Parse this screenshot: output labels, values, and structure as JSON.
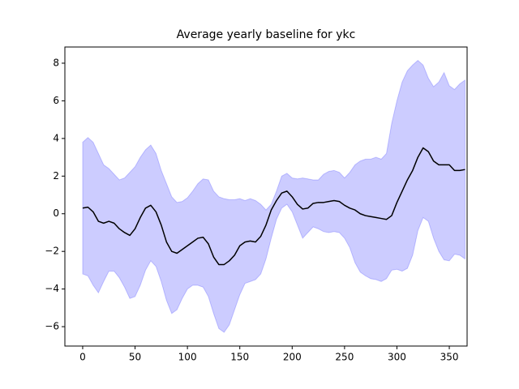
{
  "chart_data": {
    "type": "line",
    "title": "Average yearly baseline for ykc",
    "x": [
      0,
      5,
      10,
      15,
      20,
      25,
      30,
      35,
      40,
      45,
      50,
      55,
      60,
      65,
      70,
      75,
      80,
      85,
      90,
      95,
      100,
      105,
      110,
      115,
      120,
      125,
      130,
      135,
      140,
      145,
      150,
      155,
      160,
      165,
      170,
      175,
      180,
      185,
      190,
      195,
      200,
      205,
      210,
      215,
      220,
      225,
      230,
      235,
      240,
      245,
      250,
      255,
      260,
      265,
      270,
      275,
      280,
      285,
      290,
      295,
      300,
      305,
      310,
      315,
      320,
      325,
      330,
      335,
      340,
      345,
      350,
      355,
      360,
      365
    ],
    "series": [
      {
        "color": "#000000",
        "values": [
          0.3,
          0.35,
          0.1,
          -0.4,
          -0.5,
          -0.4,
          -0.5,
          -0.8,
          -1.0,
          -1.15,
          -0.8,
          -0.2,
          0.3,
          0.45,
          0.1,
          -0.6,
          -1.5,
          -2.0,
          -2.1,
          -1.9,
          -1.7,
          -1.5,
          -1.3,
          -1.25,
          -1.6,
          -2.3,
          -2.7,
          -2.7,
          -2.5,
          -2.2,
          -1.7,
          -1.5,
          -1.45,
          -1.5,
          -1.2,
          -0.6,
          0.2,
          0.7,
          1.1,
          1.2,
          0.9,
          0.5,
          0.25,
          0.3,
          0.55,
          0.6,
          0.6,
          0.65,
          0.7,
          0.65,
          0.45,
          0.3,
          0.2,
          0.0,
          -0.1,
          -0.15,
          -0.2,
          -0.25,
          -0.3,
          -0.1,
          0.6,
          1.2,
          1.8,
          2.3,
          3.0,
          3.5,
          3.3,
          2.8,
          2.6,
          2.6,
          2.6,
          2.3,
          2.3,
          2.35
        ]
      }
    ],
    "band": {
      "color": "#0000ff",
      "opacity": 0.2,
      "upper": [
        3.8,
        4.05,
        3.8,
        3.2,
        2.6,
        2.4,
        2.1,
        1.8,
        1.9,
        2.2,
        2.5,
        3.0,
        3.4,
        3.65,
        3.2,
        2.3,
        1.6,
        0.9,
        0.6,
        0.65,
        0.85,
        1.2,
        1.6,
        1.85,
        1.8,
        1.2,
        0.9,
        0.8,
        0.75,
        0.75,
        0.8,
        0.7,
        0.8,
        0.7,
        0.5,
        0.2,
        0.5,
        1.2,
        2.0,
        2.15,
        1.9,
        1.85,
        1.9,
        1.85,
        1.8,
        1.8,
        2.1,
        2.25,
        2.3,
        2.2,
        1.9,
        2.2,
        2.6,
        2.8,
        2.9,
        2.9,
        3.0,
        2.9,
        3.2,
        4.8,
        6.0,
        7.0,
        7.6,
        7.9,
        8.15,
        7.9,
        7.2,
        6.75,
        7.0,
        7.5,
        6.8,
        6.6,
        6.9,
        7.1
      ],
      "lower": [
        -3.2,
        -3.3,
        -3.8,
        -4.2,
        -3.6,
        -3.05,
        -3.05,
        -3.4,
        -3.9,
        -4.5,
        -4.4,
        -3.8,
        -3.0,
        -2.5,
        -2.8,
        -3.6,
        -4.6,
        -5.3,
        -5.1,
        -4.5,
        -4.0,
        -3.8,
        -3.8,
        -3.9,
        -4.4,
        -5.3,
        -6.1,
        -6.3,
        -5.9,
        -5.1,
        -4.3,
        -3.7,
        -3.6,
        -3.5,
        -3.2,
        -2.4,
        -1.3,
        -0.3,
        0.3,
        0.5,
        0.1,
        -0.6,
        -1.3,
        -1.0,
        -0.7,
        -0.8,
        -0.95,
        -1.0,
        -0.95,
        -1.0,
        -1.3,
        -1.8,
        -2.6,
        -3.1,
        -3.3,
        -3.45,
        -3.5,
        -3.6,
        -3.45,
        -3.0,
        -2.95,
        -3.05,
        -2.9,
        -2.2,
        -0.9,
        -0.2,
        -0.4,
        -1.3,
        -2.0,
        -2.45,
        -2.5,
        -2.15,
        -2.2,
        -2.4
      ]
    },
    "xlim": [
      -17,
      367
    ],
    "ylim": [
      -7.03,
      8.86
    ],
    "xticks": [
      0,
      50,
      100,
      150,
      200,
      250,
      300,
      350
    ],
    "yticks": [
      {
        "value": -6,
        "label": "−6"
      },
      {
        "value": -4,
        "label": "−4"
      },
      {
        "value": -2,
        "label": "−2"
      },
      0,
      2,
      4,
      6,
      8
    ],
    "grid": false
  }
}
